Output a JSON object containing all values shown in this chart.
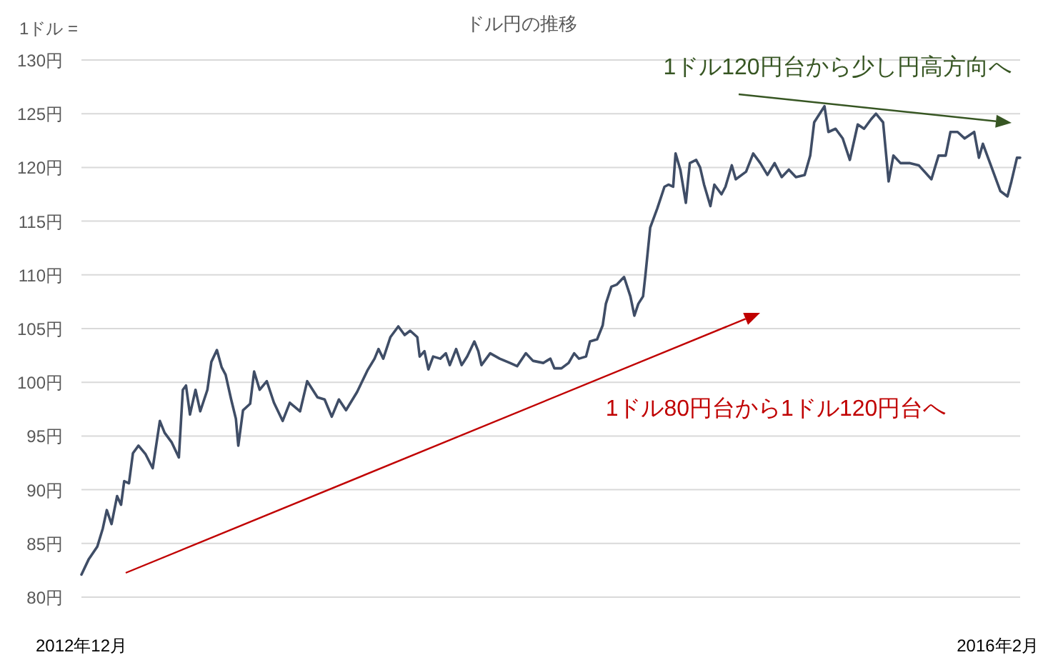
{
  "chart_data": {
    "type": "line",
    "title": "ドル円の推移",
    "ylabel": "1ドル =",
    "annotations": [
      "1ドル120円台から少し円高方向へ",
      "1ドル80円台から1ドル120円台へ"
    ],
    "x": [
      "2012-12-01",
      "2012-12-10",
      "2012-12-21",
      "2012-12-28",
      "2013-01-02",
      "2013-01-08",
      "2013-01-15",
      "2013-01-20",
      "2013-01-24",
      "2013-01-30",
      "2013-02-04",
      "2013-02-11",
      "2013-02-20",
      "2013-03-01",
      "2013-03-10",
      "2013-03-16",
      "2013-03-25",
      "2013-04-03",
      "2013-04-08",
      "2013-04-12",
      "2013-04-17",
      "2013-04-24",
      "2013-04-30",
      "2013-05-09",
      "2013-05-14",
      "2013-05-21",
      "2013-05-27",
      "2013-06-01",
      "2013-06-08",
      "2013-06-14",
      "2013-06-17",
      "2013-06-23",
      "2013-07-02",
      "2013-07-07",
      "2013-07-14",
      "2013-07-23",
      "2013-08-01",
      "2013-08-12",
      "2013-08-21",
      "2013-09-03",
      "2013-09-12",
      "2013-09-25",
      "2013-10-04",
      "2013-10-13",
      "2013-10-22",
      "2013-10-31",
      "2013-11-14",
      "2013-11-27",
      "2013-12-06",
      "2013-12-11",
      "2013-12-17",
      "2013-12-26",
      "2014-01-05",
      "2014-01-13",
      "2014-01-20",
      "2014-01-29",
      "2014-02-01",
      "2014-02-07",
      "2014-02-12",
      "2014-02-18",
      "2014-02-27",
      "2014-03-06",
      "2014-03-11",
      "2014-03-19",
      "2014-03-26",
      "2014-04-02",
      "2014-04-11",
      "2014-04-16",
      "2014-04-20",
      "2014-05-01",
      "2014-05-13",
      "2014-05-26",
      "2014-06-04",
      "2014-06-15",
      "2014-06-24",
      "2014-07-07",
      "2014-07-16",
      "2014-07-21",
      "2014-07-30",
      "2014-08-08",
      "2014-08-15",
      "2014-08-21",
      "2014-08-30",
      "2014-09-04",
      "2014-09-13",
      "2014-09-20",
      "2014-09-24",
      "2014-10-01",
      "2014-10-08",
      "2014-10-17",
      "2014-10-25",
      "2014-10-30",
      "2014-11-04",
      "2014-11-10",
      "2014-11-13",
      "2014-11-19",
      "2014-11-28",
      "2014-12-07",
      "2014-12-12",
      "2014-12-18",
      "2014-12-21",
      "2014-12-27",
      "2015-01-03",
      "2015-01-08",
      "2015-01-16",
      "2015-01-21",
      "2015-01-26",
      "2015-02-03",
      "2015-02-08",
      "2015-02-17",
      "2015-02-22",
      "2015-03-02",
      "2015-03-07",
      "2015-03-20",
      "2015-03-29",
      "2015-04-07",
      "2015-04-16",
      "2015-04-25",
      "2015-05-04",
      "2015-05-13",
      "2015-05-22",
      "2015-06-02",
      "2015-06-09",
      "2015-06-14",
      "2015-06-27",
      "2015-07-02",
      "2015-07-11",
      "2015-07-20",
      "2015-07-29",
      "2015-08-08",
      "2015-08-16",
      "2015-08-25",
      "2015-08-31",
      "2015-09-09",
      "2015-09-16",
      "2015-09-22",
      "2015-10-01",
      "2015-10-13",
      "2015-10-24",
      "2015-11-09",
      "2015-11-18",
      "2015-11-27",
      "2015-12-03",
      "2015-12-12",
      "2015-12-21",
      "2016-01-02",
      "2016-01-08",
      "2016-01-13",
      "2016-01-22",
      "2016-02-04",
      "2016-02-13",
      "2016-02-18",
      "2016-02-25",
      "2016-02-29"
    ],
    "series": [
      {
        "color": "#3f4d66",
        "values": [
          82.1,
          83.5,
          84.7,
          86.4,
          88.1,
          86.8,
          89.4,
          88.6,
          90.8,
          90.6,
          93.4,
          94.1,
          93.3,
          92.0,
          96.4,
          95.3,
          94.4,
          93.0,
          99.3,
          99.7,
          97.0,
          99.3,
          97.3,
          99.3,
          101.9,
          103.0,
          101.4,
          100.7,
          98.4,
          96.6,
          94.1,
          97.4,
          98.0,
          101.0,
          99.3,
          100.1,
          98.1,
          96.4,
          98.1,
          97.3,
          100.1,
          98.6,
          98.4,
          96.8,
          98.4,
          97.4,
          99.1,
          101.1,
          102.2,
          103.1,
          102.2,
          104.2,
          105.2,
          104.4,
          104.8,
          104.2,
          102.4,
          102.9,
          101.2,
          102.4,
          102.2,
          102.7,
          101.6,
          103.1,
          101.6,
          102.4,
          103.8,
          102.9,
          101.6,
          102.7,
          102.2,
          101.8,
          101.5,
          102.7,
          102.0,
          101.8,
          102.2,
          101.3,
          101.3,
          101.8,
          102.7,
          102.2,
          102.4,
          103.8,
          104.0,
          105.3,
          107.3,
          108.9,
          109.1,
          109.8,
          108.0,
          106.2,
          107.3,
          108.0,
          110.0,
          114.4,
          116.2,
          118.2,
          118.4,
          118.2,
          121.3,
          119.8,
          116.7,
          120.4,
          120.7,
          120.0,
          118.4,
          116.4,
          118.4,
          117.5,
          118.2,
          120.2,
          118.9,
          119.6,
          121.3,
          120.4,
          119.3,
          120.4,
          119.1,
          119.8,
          119.1,
          119.3,
          121.1,
          124.2,
          125.7,
          123.3,
          123.6,
          122.7,
          120.7,
          124.0,
          123.6,
          124.5,
          125.0,
          124.2,
          118.7,
          121.1,
          120.4,
          120.4,
          120.2,
          118.9,
          121.1,
          121.1,
          123.3,
          123.3,
          122.7,
          123.3,
          120.9,
          122.2,
          120.4,
          117.8,
          117.3,
          118.7,
          120.9,
          120.9
        ]
      }
    ],
    "xlim": [
      "2012-12-01",
      "2016-02-29"
    ],
    "xticks": [
      {
        "value": "2012-12-01",
        "label": "2012年12月"
      },
      {
        "value": "2016-02-01",
        "label": "2016年2月"
      }
    ],
    "ylim": [
      80,
      130
    ],
    "yticks": [
      {
        "value": 80,
        "label": "80円"
      },
      {
        "value": 85,
        "label": "85円"
      },
      {
        "value": 90,
        "label": "90円"
      },
      {
        "value": 95,
        "label": "95円"
      },
      {
        "value": 100,
        "label": "100円"
      },
      {
        "value": 105,
        "label": "105円"
      },
      {
        "value": 110,
        "label": "110円"
      },
      {
        "value": 115,
        "label": "115円"
      },
      {
        "value": 120,
        "label": "120円"
      },
      {
        "value": 125,
        "label": "125円"
      },
      {
        "value": 130,
        "label": "130円"
      }
    ],
    "grid": "y"
  }
}
